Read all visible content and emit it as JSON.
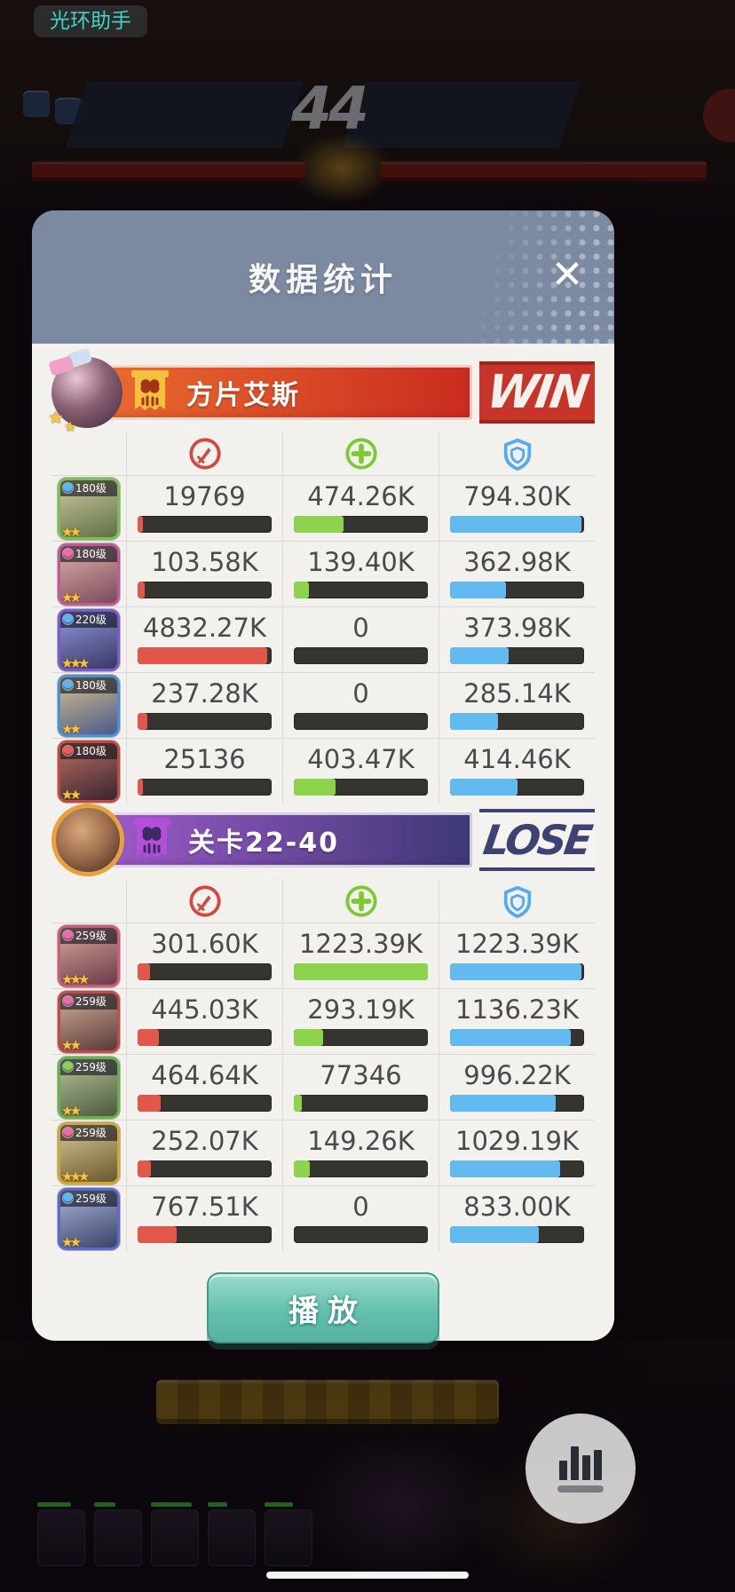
{
  "overlay": {
    "assistant_badge": "光环助手",
    "vs_number": "44",
    "fab_icon": "stats-chart-icon"
  },
  "modal": {
    "title": "数据统计",
    "close_glyph": "✕",
    "play_label": "播放",
    "columns": [
      {
        "name": "damage",
        "icon": "sword-icon",
        "ring_color": "#cf4a42",
        "fill_color": "#e3574a"
      },
      {
        "name": "heal",
        "icon": "plus-icon",
        "ring_color": "#7ec832",
        "fill_color": "#8cd44e"
      },
      {
        "name": "damage-taken",
        "icon": "shield-icon",
        "ring_color": "#55aaf0",
        "fill_color": "#62baf0"
      }
    ],
    "teams": [
      {
        "name": "方片艾斯",
        "result": "WIN",
        "result_style": "win",
        "banner_from": "#e9692f",
        "banner_to": "#ca2b1f",
        "flag_color": "#f4c13e",
        "flag_face_color": "#a03414",
        "members": [
          {
            "level": "180级",
            "stars": 2,
            "gem_color": "#58b8f5",
            "frame_color": "#7abf4f",
            "portrait": [
              "#cfc9a0",
              "#5f7046"
            ],
            "stats": [
              {
                "value": "19769",
                "fill": 4
              },
              {
                "value": "474.26K",
                "fill": 37
              },
              {
                "value": "794.30K",
                "fill": 98
              }
            ]
          },
          {
            "level": "180级",
            "stars": 2,
            "gem_color": "#f06aa8",
            "frame_color": "#c05a9a",
            "portrait": [
              "#e0b0a8",
              "#7a4a5e"
            ],
            "stats": [
              {
                "value": "103.58K",
                "fill": 5
              },
              {
                "value": "139.40K",
                "fill": 11
              },
              {
                "value": "362.98K",
                "fill": 42
              }
            ]
          },
          {
            "level": "220级",
            "stars": 3,
            "gem_color": "#58b8f5",
            "frame_color": "#7a5ad0",
            "portrait": [
              "#8e9ad8",
              "#3a3668"
            ],
            "stats": [
              {
                "value": "4832.27K",
                "fill": 97
              },
              {
                "value": "0",
                "fill": 0
              },
              {
                "value": "373.98K",
                "fill": 44
              }
            ]
          },
          {
            "level": "180级",
            "stars": 2,
            "gem_color": "#58b8f5",
            "frame_color": "#4a90d8",
            "portrait": [
              "#d8c08a",
              "#4a5a8a"
            ],
            "stats": [
              {
                "value": "237.28K",
                "fill": 7
              },
              {
                "value": "0",
                "fill": 0
              },
              {
                "value": "285.14K",
                "fill": 36
              }
            ]
          },
          {
            "level": "180级",
            "stars": 2,
            "gem_color": "#f05a5a",
            "frame_color": "#c04a40",
            "portrait": [
              "#b87060",
              "#3a2430"
            ],
            "stats": [
              {
                "value": "25136",
                "fill": 4
              },
              {
                "value": "403.47K",
                "fill": 31
              },
              {
                "value": "414.46K",
                "fill": 50
              }
            ]
          }
        ]
      },
      {
        "name": "关卡22-40",
        "result": "LOSE",
        "result_style": "lose",
        "banner_from": "#9a59c6",
        "banner_to": "#3e3876",
        "flag_color": "#b44fd8",
        "flag_face_color": "#3a2a66",
        "members": [
          {
            "level": "259级",
            "stars": 3,
            "gem_color": "#f06aa8",
            "frame_color": "#d05a7a",
            "portrait": [
              "#d8a898",
              "#6a3a4a"
            ],
            "stats": [
              {
                "value": "301.60K",
                "fill": 9
              },
              {
                "value": "1223.39K",
                "fill": 100
              },
              {
                "value": "1223.39K",
                "fill": 98
              }
            ]
          },
          {
            "level": "259级",
            "stars": 2,
            "gem_color": "#f06aa8",
            "frame_color": "#c84848",
            "portrait": [
              "#d0b098",
              "#5a3a38"
            ],
            "stats": [
              {
                "value": "445.03K",
                "fill": 16
              },
              {
                "value": "293.19K",
                "fill": 22
              },
              {
                "value": "1136.23K",
                "fill": 90
              }
            ]
          },
          {
            "level": "259级",
            "stars": 2,
            "gem_color": "#8cd44e",
            "frame_color": "#6ab04a",
            "portrait": [
              "#b8c49a",
              "#4a5a3c"
            ],
            "stats": [
              {
                "value": "464.64K",
                "fill": 17
              },
              {
                "value": "77346",
                "fill": 6
              },
              {
                "value": "996.22K",
                "fill": 79
              }
            ]
          },
          {
            "level": "259级",
            "stars": 3,
            "gem_color": "#f06aa8",
            "frame_color": "#d0a838",
            "portrait": [
              "#d8c898",
              "#6a582c"
            ],
            "stats": [
              {
                "value": "252.07K",
                "fill": 10
              },
              {
                "value": "149.26K",
                "fill": 12
              },
              {
                "value": "1029.19K",
                "fill": 82
              }
            ]
          },
          {
            "level": "259级",
            "stars": 2,
            "gem_color": "#58b8f5",
            "frame_color": "#5a6ad0",
            "portrait": [
              "#aab4d8",
              "#3a4468"
            ],
            "stats": [
              {
                "value": "767.51K",
                "fill": 29
              },
              {
                "value": "0",
                "fill": 0
              },
              {
                "value": "833.00K",
                "fill": 66
              }
            ]
          }
        ]
      }
    ]
  }
}
